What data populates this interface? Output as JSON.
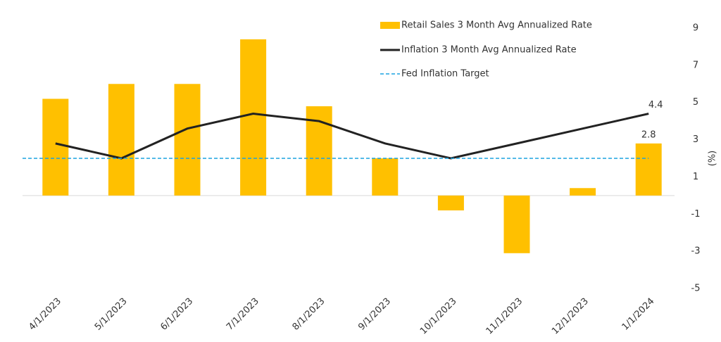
{
  "chart_data": {
    "type": "bar",
    "categories": [
      "4/1/2023",
      "5/1/2023",
      "6/1/2023",
      "7/1/2023",
      "8/1/2023",
      "9/1/2023",
      "10/1/2023",
      "11/1/2023",
      "12/1/2023",
      "1/1/2024"
    ],
    "series": [
      {
        "name": "Retail Sales 3 Month Avg Annualized Rate",
        "type": "bar",
        "color": "#ffc000",
        "values": [
          5.2,
          6.0,
          6.0,
          8.4,
          4.8,
          2.0,
          -0.8,
          -3.1,
          0.4,
          2.8
        ]
      },
      {
        "name": "Inflation 3 Month Avg Annualized Rate",
        "type": "line",
        "color": "#222222",
        "values": [
          2.8,
          2.0,
          3.6,
          4.4,
          4.0,
          2.8,
          2.0,
          2.8,
          3.6,
          4.4
        ]
      }
    ],
    "target": {
      "name": "Fed Inflation Target",
      "value": 2,
      "color": "#1ca3e0"
    },
    "y_label": "(%)",
    "ylim": [
      -5,
      9
    ],
    "yticks": [
      -5,
      -3,
      -1,
      1,
      3,
      5,
      7,
      9
    ],
    "legend": "top"
  }
}
